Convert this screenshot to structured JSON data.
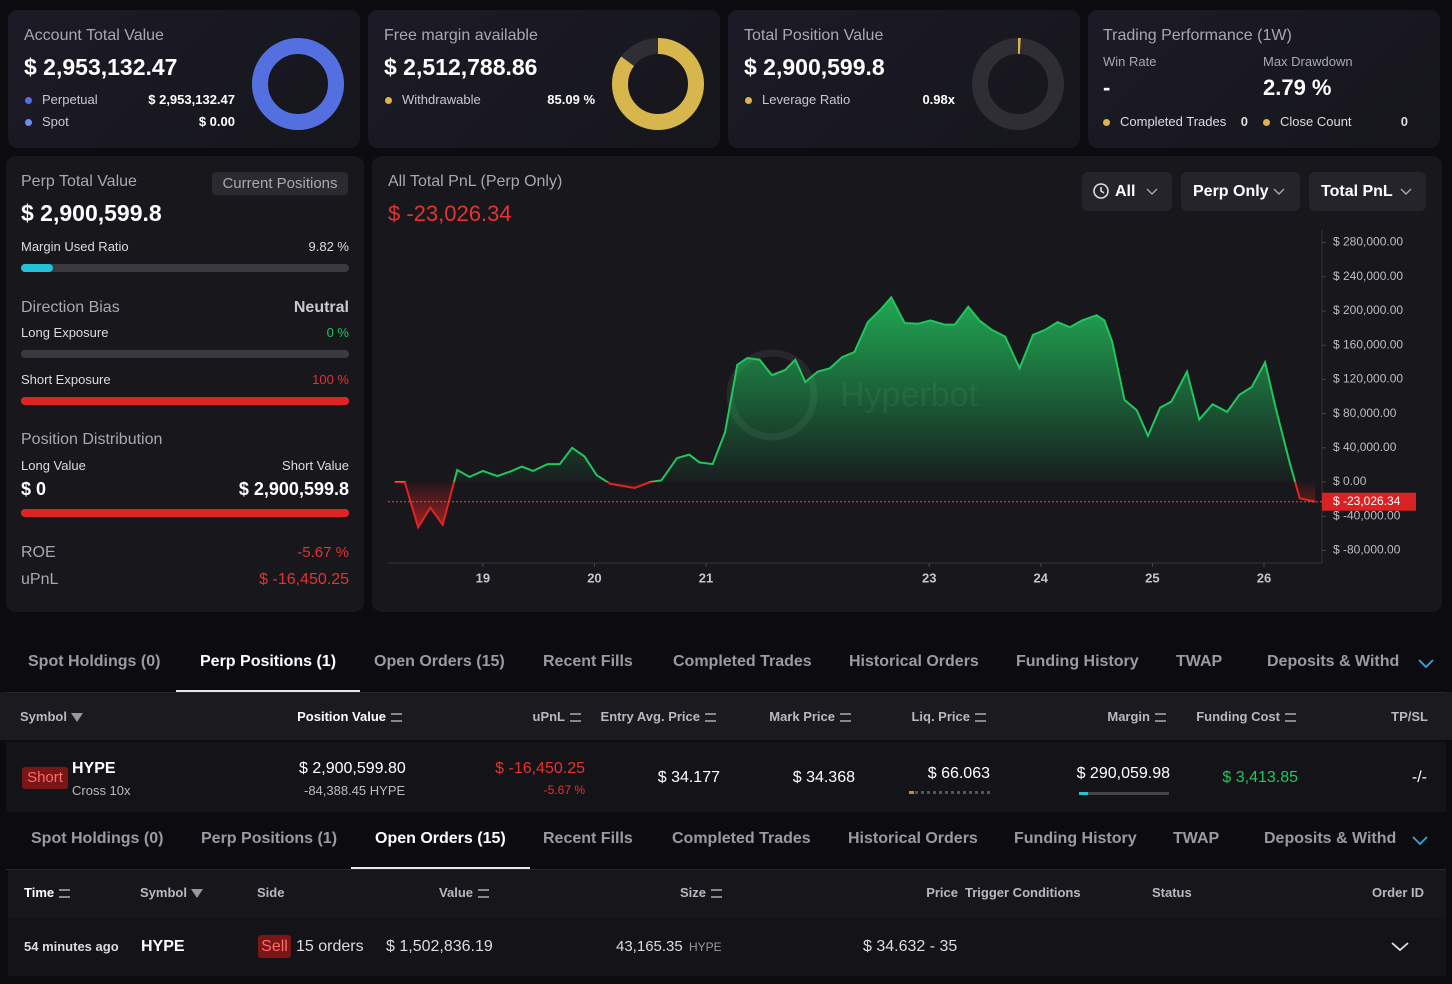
{
  "cards": [
    {
      "title": "Account Total Value",
      "value": "$ 2,953,132.47",
      "donut": {
        "labels": [
          "Perpetual",
          "Spot"
        ],
        "values": [
          2953132.47,
          0
        ],
        "value_labels": [
          "$ 2,953,132.47",
          "$ 0.00"
        ],
        "colors": [
          "#5470e0",
          "#6f8cf5"
        ]
      }
    },
    {
      "title": "Free margin available",
      "value": "$ 2,512,788.86",
      "donut": {
        "labels": [
          "Withdrawable"
        ],
        "values": [
          85.09
        ],
        "value_labels": [
          "85.09 %"
        ],
        "colors": [
          "#d8b64e"
        ],
        "lim": [
          0,
          100
        ]
      }
    },
    {
      "title": "Total Position Value",
      "value": "$ 2,900,599.8",
      "donut": {
        "labels": [
          "Leverage Ratio"
        ],
        "values": [
          0.98
        ],
        "value_labels": [
          "0.98x"
        ],
        "colors": [
          "#d8b64e"
        ],
        "lim": [
          0,
          100
        ]
      }
    },
    {
      "title": "Trading Performance (1W)",
      "stats": [
        {
          "label": "Win Rate",
          "value": "-"
        },
        {
          "label": "Max Drawdown",
          "value": "2.79 %"
        }
      ],
      "counts": [
        {
          "label": "Completed Trades",
          "value": 0
        },
        {
          "label": "Close Count",
          "value": 0
        }
      ]
    }
  ],
  "perp": {
    "title": "Perp Total Value",
    "button": "Current Positions",
    "value": "$ 2,900,599.8",
    "bar_lim": [
      0,
      100
    ],
    "margin_used": {
      "label": "Margin Used Ratio",
      "value": 9.82,
      "value_label": "9.82 %"
    },
    "direction": {
      "title": "Direction Bias",
      "value": "Neutral"
    },
    "long_exposure": {
      "label": "Long Exposure",
      "value": 0,
      "value_label": "0 %"
    },
    "short_exposure": {
      "label": "Short Exposure",
      "value": 100,
      "value_label": "100 %"
    },
    "distribution": {
      "title": "Position Distribution",
      "labels": [
        "Long Value",
        "Short Value"
      ],
      "values": [
        0,
        2900599.8
      ],
      "value_labels": [
        "$ 0",
        "$ 2,900,599.8"
      ]
    },
    "roe": {
      "label": "ROE",
      "value": "-5.67 %"
    },
    "upnl": {
      "label": "uPnL",
      "value": "$ -16,450.25"
    }
  },
  "chart_controls": [
    "All",
    "Perp Only",
    "Total PnL"
  ],
  "chart_data": {
    "type": "area",
    "title": "All Total PnL (Perp Only)",
    "subtitle": "$ -23,026.34",
    "watermark": "Hyperbot",
    "color": "#22c55e",
    "negative_color": "#e02424",
    "x": [
      18.21,
      18.3,
      18.42,
      18.53,
      18.64,
      18.77,
      18.88,
      19.0,
      19.13,
      19.24,
      19.35,
      19.45,
      19.58,
      19.69,
      19.8,
      19.91,
      20.02,
      20.14,
      20.36,
      20.5,
      20.6,
      20.74,
      20.85,
      20.94,
      21.06,
      21.17,
      21.28,
      21.37,
      21.48,
      21.59,
      21.71,
      21.8,
      21.89,
      22.0,
      22.11,
      22.22,
      22.33,
      22.45,
      22.56,
      22.66,
      22.78,
      22.9,
      23.01,
      23.14,
      23.23,
      23.35,
      23.45,
      23.56,
      23.68,
      23.81,
      23.93,
      24.04,
      24.15,
      24.26,
      24.37,
      24.5,
      24.57,
      24.64,
      24.75,
      24.86,
      24.96,
      25.07,
      25.17,
      25.31,
      25.42,
      25.54,
      25.67,
      25.78,
      25.89,
      26.01,
      26.11,
      26.23,
      26.32,
      26.46
    ],
    "values": [
      0,
      0,
      -53000,
      -30000,
      -50000,
      14000,
      6000,
      13000,
      7000,
      12000,
      18000,
      13000,
      21000,
      21000,
      40000,
      30000,
      8000,
      -2000,
      -7000,
      0,
      2000,
      28000,
      32000,
      23000,
      21000,
      58000,
      137000,
      145000,
      143000,
      125000,
      131000,
      143000,
      117000,
      129000,
      133000,
      146000,
      152000,
      187000,
      201000,
      216000,
      186000,
      185000,
      189000,
      184000,
      184000,
      205000,
      189000,
      178000,
      170000,
      133000,
      172000,
      178000,
      187000,
      181000,
      189000,
      195000,
      189000,
      164000,
      96000,
      84000,
      54000,
      87000,
      94000,
      129000,
      73000,
      91000,
      82000,
      102000,
      111000,
      140000,
      84000,
      23000,
      -19000,
      -23026.34
    ],
    "xlim": [
      18.15,
      26.52
    ],
    "xticks": [
      19,
      20,
      21,
      23,
      24,
      25,
      26
    ],
    "ylim": [
      -90000,
      290000
    ],
    "yticks": [
      {
        "value": 280000,
        "label": "$ 280,000.00"
      },
      {
        "value": 240000,
        "label": "$ 240,000.00"
      },
      {
        "value": 200000,
        "label": "$ 200,000.00"
      },
      {
        "value": 160000,
        "label": "$ 160,000.00"
      },
      {
        "value": 120000,
        "label": "$ 120,000.00"
      },
      {
        "value": 80000,
        "label": "$ 80,000.00"
      },
      {
        "value": 40000,
        "label": "$ 40,000.00"
      },
      {
        "value": 0,
        "label": "$ 0.00"
      },
      {
        "value": -40000,
        "label": "$ -40,000.00"
      },
      {
        "value": -80000,
        "label": "$ -80,000.00"
      }
    ]
  },
  "position_tabs": {
    "items": [
      "Spot Holdings (0)",
      "Perp Positions (1)",
      "Open Orders (15)",
      "Recent Fills",
      "Completed Trades",
      "Historical Orders",
      "Funding History",
      "TWAP",
      "Deposits & Withdra"
    ],
    "active": 1
  },
  "positions_table": {
    "headers": [
      "Symbol",
      "Position Value",
      "uPnL",
      "Entry Avg. Price",
      "Mark Price",
      "Liq. Price",
      "Margin",
      "Funding Cost",
      "TP/SL"
    ],
    "row": {
      "side": "Short",
      "symbol": "HYPE",
      "mode": "Cross 10x",
      "position_value": "$ 2,900,599.80",
      "size": "-84,388.45 HYPE",
      "upnl": "$ -16,450.25",
      "upnl_pct": "-5.67 %",
      "entry_price": "$ 34.177",
      "mark_price": "$ 34.368",
      "liq_price": "$ 66.063",
      "margin": "$ 290,059.98",
      "funding_cost": "$ 3,413.85",
      "tp_sl": "-/-"
    }
  },
  "order_tabs": {
    "items": [
      "Spot Holdings (0)",
      "Perp Positions (1)",
      "Open Orders (15)",
      "Recent Fills",
      "Completed Trades",
      "Historical Orders",
      "Funding History",
      "TWAP",
      "Deposits & Withdra"
    ],
    "active": 2
  },
  "orders_table": {
    "headers": [
      "Time",
      "Symbol",
      "Side",
      "Value",
      "Size",
      "Price",
      "Trigger Conditions",
      "Status",
      "Order ID"
    ],
    "row": {
      "time": "54 minutes ago",
      "symbol": "HYPE",
      "side": "Sell",
      "orders": "15 orders",
      "value": "$ 1,502,836.19",
      "size": "43,165.35",
      "size_unit": "HYPE",
      "price": "$ 34.632 - 35"
    }
  }
}
